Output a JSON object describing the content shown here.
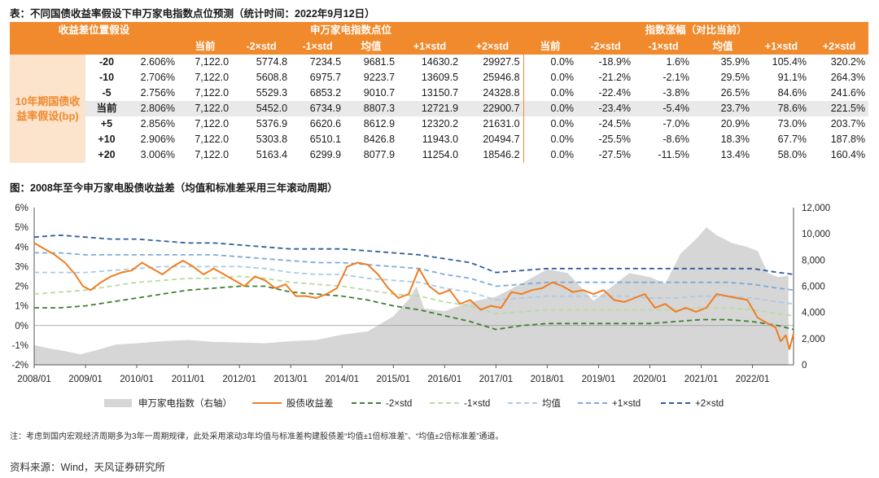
{
  "table_title": "表：不同国债收益率假设下申万家电指数点位预测（统计时间：2022年9月12日）",
  "table": {
    "group_header_left": "收益差位置假设",
    "group_header_mid": "申万家电指数点位",
    "group_header_right": "指数涨幅（对比当前）",
    "col_headers": [
      "当前",
      "-2×std",
      "-1×std",
      "均值",
      "+1×std",
      "+2×std",
      "当前",
      "-2×std",
      "-1×std",
      "均值",
      "+1×std",
      "+2×std"
    ],
    "row_label": "10年期国债收益率假设(bp)",
    "rows": [
      {
        "shift": "-20",
        "yield": "2.606%",
        "values": [
          "7,122.0",
          "5774.8",
          "7234.5",
          "9681.5",
          "14630.2",
          "29927.5",
          "0.0%",
          "-18.9%",
          "1.6%",
          "35.9%",
          "105.4%",
          "320.2%"
        ]
      },
      {
        "shift": "-10",
        "yield": "2.706%",
        "values": [
          "7,122.0",
          "5608.8",
          "6975.7",
          "9223.7",
          "13609.5",
          "25946.8",
          "0.0%",
          "-21.2%",
          "-2.1%",
          "29.5%",
          "91.1%",
          "264.3%"
        ]
      },
      {
        "shift": "-5",
        "yield": "2.756%",
        "values": [
          "7,122.0",
          "5529.3",
          "6853.2",
          "9010.7",
          "13150.7",
          "24328.8",
          "0.0%",
          "-22.4%",
          "-3.8%",
          "26.5%",
          "84.6%",
          "241.6%"
        ]
      },
      {
        "shift": "当前",
        "yield": "2.806%",
        "values": [
          "7,122.0",
          "5452.0",
          "6734.9",
          "8807.3",
          "12721.9",
          "22900.7",
          "0.0%",
          "-23.4%",
          "-5.4%",
          "23.7%",
          "78.6%",
          "221.5%"
        ]
      },
      {
        "shift": "+5",
        "yield": "2.856%",
        "values": [
          "7,122.0",
          "5376.9",
          "6620.6",
          "8612.9",
          "12320.2",
          "21631.0",
          "0.0%",
          "-24.5%",
          "-7.0%",
          "20.9%",
          "73.0%",
          "203.7%"
        ]
      },
      {
        "shift": "+10",
        "yield": "2.906%",
        "values": [
          "7,122.0",
          "5303.8",
          "6510.1",
          "8426.8",
          "11943.0",
          "20494.7",
          "0.0%",
          "-25.5%",
          "-8.6%",
          "18.3%",
          "67.7%",
          "187.8%"
        ]
      },
      {
        "shift": "+20",
        "yield": "3.006%",
        "values": [
          "7,122.0",
          "5163.4",
          "6299.9",
          "8077.9",
          "11254.0",
          "18546.2",
          "0.0%",
          "-27.5%",
          "-11.5%",
          "13.4%",
          "58.0%",
          "160.4%"
        ]
      }
    ]
  },
  "chart_title": "图：2008年至今申万家电股债收益差（均值和标准差采用三年滚动周期）",
  "chart_data": {
    "type": "line",
    "title": "2008年至今申万家电股债收益差（均值和标准差采用三年滚动周期）",
    "x_tick_labels": [
      "2008/01",
      "2009/01",
      "2010/01",
      "2011/01",
      "2012/01",
      "2013/01",
      "2014/01",
      "2015/01",
      "2016/01",
      "2017/01",
      "2018/01",
      "2019/01",
      "2020/01",
      "2021/01",
      "2022/01"
    ],
    "x_range": [
      2008.0,
      2022.8
    ],
    "y_left": {
      "range": [
        -2,
        6
      ],
      "ticks": [
        "-2%",
        "-1%",
        "0%",
        "1%",
        "2%",
        "3%",
        "4%",
        "5%",
        "6%"
      ]
    },
    "y_right": {
      "range": [
        0,
        12000
      ],
      "ticks": [
        "0",
        "2,000",
        "4,000",
        "6,000",
        "8,000",
        "10,000",
        "12,000"
      ]
    },
    "index_series": {
      "name": "申万家电指数（右轴）",
      "axis": "right",
      "x": [
        2008.0,
        2008.3,
        2008.6,
        2008.9,
        2009.2,
        2009.6,
        2010.0,
        2010.5,
        2011.0,
        2011.5,
        2012.0,
        2012.5,
        2013.0,
        2013.5,
        2014.0,
        2014.5,
        2015.0,
        2015.3,
        2015.45,
        2015.6,
        2016.0,
        2016.5,
        2017.0,
        2017.5,
        2018.0,
        2018.4,
        2018.9,
        2019.2,
        2019.6,
        2020.0,
        2020.3,
        2020.6,
        2020.9,
        2021.1,
        2021.3,
        2021.6,
        2021.9,
        2022.1,
        2022.3,
        2022.5,
        2022.7
      ],
      "y": [
        1500,
        1250,
        1050,
        800,
        1100,
        1550,
        1650,
        1800,
        1900,
        1750,
        1700,
        1650,
        1800,
        1900,
        2300,
        2550,
        3700,
        5000,
        6000,
        4300,
        4100,
        4800,
        5200,
        6200,
        7300,
        7000,
        4900,
        5800,
        7000,
        6700,
        6200,
        8500,
        9600,
        10500,
        9900,
        9300,
        9000,
        8700,
        7000,
        6700,
        6800
      ]
    },
    "series": [
      {
        "name": "股债收益差",
        "color": "#ef7d22",
        "style": "solid",
        "x": [
          2008.0,
          2008.2,
          2008.4,
          2008.6,
          2008.8,
          2008.95,
          2009.1,
          2009.3,
          2009.5,
          2009.7,
          2009.9,
          2010.1,
          2010.3,
          2010.5,
          2010.7,
          2010.9,
          2011.1,
          2011.3,
          2011.5,
          2011.7,
          2011.9,
          2012.1,
          2012.3,
          2012.5,
          2012.7,
          2012.9,
          2013.1,
          2013.3,
          2013.5,
          2013.7,
          2013.9,
          2014.1,
          2014.3,
          2014.5,
          2014.7,
          2014.9,
          2015.1,
          2015.3,
          2015.5,
          2015.7,
          2015.9,
          2016.1,
          2016.3,
          2016.5,
          2016.7,
          2016.9,
          2017.1,
          2017.3,
          2017.5,
          2017.7,
          2017.9,
          2018.1,
          2018.3,
          2018.5,
          2018.7,
          2018.9,
          2019.1,
          2019.3,
          2019.5,
          2019.7,
          2019.9,
          2020.1,
          2020.3,
          2020.5,
          2020.7,
          2020.9,
          2021.1,
          2021.3,
          2021.5,
          2021.7,
          2021.9,
          2022.1,
          2022.3,
          2022.45,
          2022.55,
          2022.65,
          2022.72,
          2022.8
        ],
        "y": [
          4.2,
          3.9,
          3.6,
          3.2,
          2.6,
          2.0,
          1.8,
          2.2,
          2.5,
          2.7,
          2.8,
          3.2,
          2.9,
          2.6,
          3.0,
          3.3,
          3.0,
          2.6,
          2.9,
          2.6,
          2.3,
          2.0,
          2.5,
          2.3,
          1.9,
          2.1,
          1.5,
          1.5,
          1.4,
          1.6,
          1.9,
          3.0,
          3.2,
          3.1,
          2.6,
          1.9,
          1.4,
          1.6,
          2.9,
          2.0,
          1.6,
          1.8,
          1.1,
          1.3,
          0.8,
          1.0,
          0.9,
          1.7,
          1.6,
          1.8,
          1.9,
          2.2,
          2.0,
          1.7,
          1.8,
          1.6,
          1.8,
          1.3,
          1.2,
          1.4,
          1.6,
          0.9,
          1.1,
          0.7,
          0.9,
          0.7,
          0.9,
          1.6,
          1.5,
          1.4,
          1.3,
          0.4,
          0.1,
          -0.1,
          -0.8,
          -0.5,
          -1.2,
          -0.4
        ]
      },
      {
        "name": "-2×std",
        "color": "#3f7f2e",
        "style": "dashed",
        "x": [
          2008.0,
          2008.5,
          2009.0,
          2009.5,
          2010.0,
          2010.5,
          2011.0,
          2011.5,
          2012.0,
          2012.5,
          2013.0,
          2013.5,
          2014.0,
          2014.5,
          2015.0,
          2015.5,
          2016.0,
          2016.5,
          2017.0,
          2017.5,
          2018.0,
          2018.5,
          2019.0,
          2019.5,
          2020.0,
          2020.5,
          2021.0,
          2021.5,
          2022.0,
          2022.5,
          2022.8
        ],
        "y": [
          0.9,
          0.9,
          1.0,
          1.2,
          1.4,
          1.6,
          1.8,
          1.9,
          2.0,
          2.0,
          1.7,
          1.6,
          1.5,
          1.3,
          1.0,
          0.8,
          0.5,
          0.2,
          -0.2,
          0.0,
          0.1,
          0.1,
          0.1,
          0.1,
          0.1,
          0.2,
          0.3,
          0.3,
          0.2,
          0.0,
          -0.2
        ]
      },
      {
        "name": "-1×std",
        "color": "#b7dca0",
        "style": "dashed",
        "x": [
          2008.0,
          2008.5,
          2009.0,
          2009.5,
          2010.0,
          2010.5,
          2011.0,
          2011.5,
          2012.0,
          2012.5,
          2013.0,
          2013.5,
          2014.0,
          2014.5,
          2015.0,
          2015.5,
          2016.0,
          2016.5,
          2017.0,
          2017.5,
          2018.0,
          2018.5,
          2019.0,
          2019.5,
          2020.0,
          2020.5,
          2021.0,
          2021.5,
          2022.0,
          2022.5,
          2022.8
        ],
        "y": [
          1.6,
          1.7,
          1.8,
          2.0,
          2.2,
          2.3,
          2.4,
          2.4,
          2.5,
          2.4,
          2.2,
          2.1,
          2.0,
          1.8,
          1.6,
          1.5,
          1.2,
          1.0,
          0.6,
          0.7,
          0.8,
          0.8,
          0.8,
          0.8,
          0.8,
          0.8,
          0.9,
          0.9,
          0.8,
          0.6,
          0.5
        ]
      },
      {
        "name": "均值",
        "color": "#a9cbe8",
        "style": "dashed",
        "x": [
          2008.0,
          2008.5,
          2009.0,
          2009.5,
          2010.0,
          2010.5,
          2011.0,
          2011.5,
          2012.0,
          2012.5,
          2013.0,
          2013.5,
          2014.0,
          2014.5,
          2015.0,
          2015.5,
          2016.0,
          2016.5,
          2017.0,
          2017.5,
          2018.0,
          2018.5,
          2019.0,
          2019.5,
          2020.0,
          2020.5,
          2021.0,
          2021.5,
          2022.0,
          2022.5,
          2022.8
        ],
        "y": [
          2.7,
          2.7,
          2.7,
          2.8,
          2.9,
          3.0,
          3.0,
          3.0,
          3.0,
          2.9,
          2.7,
          2.6,
          2.6,
          2.4,
          2.3,
          2.2,
          1.9,
          1.7,
          1.3,
          1.4,
          1.5,
          1.5,
          1.5,
          1.5,
          1.4,
          1.4,
          1.5,
          1.5,
          1.4,
          1.2,
          1.1
        ]
      },
      {
        "name": "+1×std",
        "color": "#7fa9d8",
        "style": "dashed",
        "x": [
          2008.0,
          2008.5,
          2009.0,
          2009.5,
          2010.0,
          2010.5,
          2011.0,
          2011.5,
          2012.0,
          2012.5,
          2013.0,
          2013.5,
          2014.0,
          2014.5,
          2015.0,
          2015.5,
          2016.0,
          2016.5,
          2017.0,
          2017.5,
          2018.0,
          2018.5,
          2019.0,
          2019.5,
          2020.0,
          2020.5,
          2021.0,
          2021.5,
          2022.0,
          2022.5,
          2022.8
        ],
        "y": [
          3.7,
          3.7,
          3.6,
          3.6,
          3.6,
          3.6,
          3.6,
          3.6,
          3.5,
          3.4,
          3.3,
          3.2,
          3.2,
          3.1,
          3.0,
          2.9,
          2.6,
          2.4,
          2.0,
          2.1,
          2.2,
          2.2,
          2.2,
          2.2,
          2.2,
          2.2,
          2.2,
          2.2,
          2.1,
          1.9,
          1.8
        ]
      },
      {
        "name": "+2×std",
        "color": "#2f5d9e",
        "style": "dashed",
        "x": [
          2008.0,
          2008.5,
          2009.0,
          2009.5,
          2010.0,
          2010.5,
          2011.0,
          2011.5,
          2012.0,
          2012.5,
          2013.0,
          2013.5,
          2014.0,
          2014.5,
          2015.0,
          2015.5,
          2016.0,
          2016.5,
          2017.0,
          2017.5,
          2018.0,
          2018.5,
          2019.0,
          2019.5,
          2020.0,
          2020.5,
          2021.0,
          2021.5,
          2022.0,
          2022.5,
          2022.8
        ],
        "y": [
          4.5,
          4.6,
          4.5,
          4.4,
          4.4,
          4.3,
          4.2,
          4.2,
          4.1,
          4.0,
          3.9,
          3.9,
          3.9,
          3.8,
          3.7,
          3.6,
          3.4,
          3.2,
          2.7,
          2.8,
          2.9,
          2.9,
          2.9,
          2.9,
          2.9,
          2.9,
          2.9,
          2.9,
          2.9,
          2.7,
          2.6
        ]
      }
    ],
    "legend": [
      "申万家电指数（右轴）",
      "股债收益差",
      "-2×std",
      "-1×std",
      "均值",
      "+1×std",
      "+2×std"
    ],
    "legend_position": "bottom"
  },
  "note": "注：考虑到国内宏观经济周期多为3年一周期规律，此处采用滚动3年均值与标准差构建股债差“均值±1倍标准差”、“均值±2倍标准差”通道。",
  "source": "资料来源：Wind，天风证券研究所"
}
